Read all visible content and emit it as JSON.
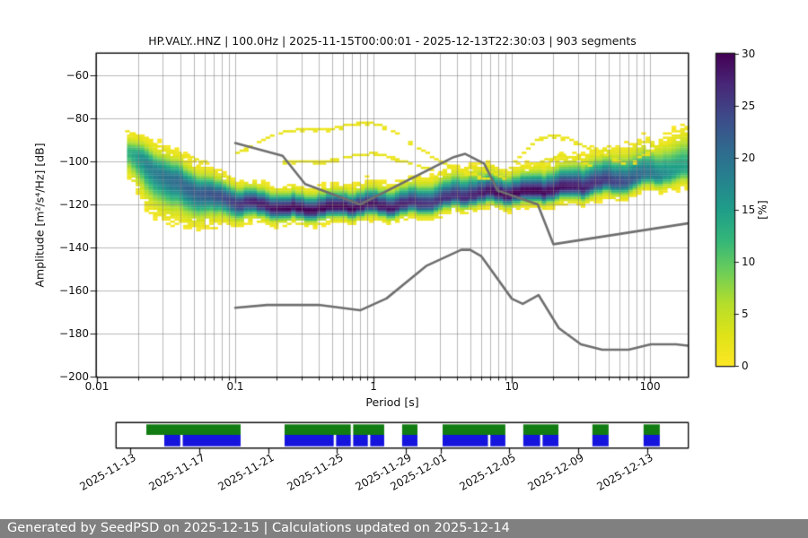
{
  "page": {
    "bg": "#ffffff"
  },
  "footer": {
    "text": "Generated by SeedPSD on 2025-12-15 | Calculations updated on 2025-12-14",
    "bg": "#808080",
    "fg": "#ffffff"
  },
  "chart_data": {
    "type": "heatmap",
    "title": "HP.VALY..HNZ | 100.0Hz | 2025-11-15T00:00:01 - 2025-12-13T22:30:03 | 903 segments",
    "xlabel": "Period [s]",
    "ylabel": "Amplitude [m²/s⁴/Hz] [dB]",
    "x_axis": {
      "scale": "log",
      "min": 0.01,
      "max": 187,
      "major_ticks": [
        {
          "v": 0.01,
          "label": "0.01"
        },
        {
          "v": 0.1,
          "label": "0.1"
        },
        {
          "v": 1,
          "label": "1"
        },
        {
          "v": 10,
          "label": "10"
        },
        {
          "v": 100,
          "label": "100"
        }
      ]
    },
    "y_axis": {
      "min": -200,
      "max": -50,
      "ticks": [
        {
          "v": -60,
          "label": "−60"
        },
        {
          "v": -80,
          "label": "−80"
        },
        {
          "v": -100,
          "label": "−100"
        },
        {
          "v": -120,
          "label": "−120"
        },
        {
          "v": -140,
          "label": "−140"
        },
        {
          "v": -160,
          "label": "−160"
        },
        {
          "v": -180,
          "label": "−180"
        },
        {
          "v": -200,
          "label": "−200"
        }
      ]
    },
    "grid": {
      "on": true,
      "color_rgba": [
        128,
        128,
        128,
        0.55
      ]
    },
    "colorbar": {
      "label": "[%]",
      "min": 0,
      "max": 30,
      "ticks": [
        0,
        5,
        10,
        15,
        20,
        25,
        30
      ],
      "colormap": "viridis_r",
      "viridis_stops": [
        [
          0.0,
          "#440154"
        ],
        [
          0.1,
          "#482878"
        ],
        [
          0.2,
          "#3e4a89"
        ],
        [
          0.3,
          "#31688e"
        ],
        [
          0.4,
          "#26828e"
        ],
        [
          0.5,
          "#1f9e89"
        ],
        [
          0.6,
          "#35b779"
        ],
        [
          0.7,
          "#6ece58"
        ],
        [
          0.8,
          "#b5de2b"
        ],
        [
          0.9,
          "#dfe318"
        ],
        [
          1.0,
          "#fde725"
        ]
      ]
    },
    "noise_models": {
      "color": "#6f6f6f",
      "line_width": 2.6,
      "high_model": [
        [
          0.1,
          -91.5
        ],
        [
          0.22,
          -97.4
        ],
        [
          0.32,
          -110.5
        ],
        [
          0.8,
          -120.0
        ],
        [
          3.8,
          -98.0
        ],
        [
          4.6,
          -96.5
        ],
        [
          6.3,
          -101.0
        ],
        [
          7.9,
          -113.5
        ],
        [
          15.4,
          -120.0
        ],
        [
          20.0,
          -138.5
        ],
        [
          187.0,
          -128.8
        ]
      ],
      "low_model": [
        [
          0.1,
          -168.0
        ],
        [
          0.17,
          -166.7
        ],
        [
          0.4,
          -166.7
        ],
        [
          0.8,
          -169.2
        ],
        [
          1.24,
          -163.7
        ],
        [
          2.4,
          -148.6
        ],
        [
          4.3,
          -141.1
        ],
        [
          5.0,
          -141.1
        ],
        [
          6.0,
          -144.0
        ],
        [
          10.0,
          -163.8
        ],
        [
          12.0,
          -166.2
        ],
        [
          15.6,
          -162.1
        ],
        [
          21.9,
          -177.5
        ],
        [
          31.6,
          -185.0
        ],
        [
          45.0,
          -187.5
        ],
        [
          70.0,
          -187.5
        ],
        [
          101.0,
          -185.0
        ],
        [
          154.0,
          -185.0
        ],
        [
          187.0,
          -185.6
        ]
      ]
    },
    "ppsd_distribution": {
      "comment": "columns of [period_s, mode_dB, sigma_above_dB, sigma_below_dB, peak_percent]",
      "period_min": 0.0165,
      "period_max": 187,
      "columns_per_decade": 32,
      "profile": [
        [
          0.0165,
          -96.5,
          4.0,
          5.5,
          13
        ],
        [
          0.022,
          -101.0,
          5.2,
          9.0,
          18
        ],
        [
          0.032,
          -108.0,
          6.2,
          8.5,
          20
        ],
        [
          0.05,
          -113.5,
          5.5,
          7.0,
          22
        ],
        [
          0.08,
          -118.0,
          4.6,
          5.0,
          24
        ],
        [
          0.13,
          -120.5,
          4.2,
          3.6,
          28
        ],
        [
          0.25,
          -121.8,
          4.2,
          3.0,
          30
        ],
        [
          0.6,
          -121.5,
          4.2,
          2.9,
          30
        ],
        [
          1.2,
          -120.8,
          4.6,
          2.9,
          29
        ],
        [
          2.5,
          -118.8,
          5.2,
          3.0,
          26
        ],
        [
          4.5,
          -116.3,
          5.8,
          3.0,
          27
        ],
        [
          8.0,
          -115.0,
          4.8,
          3.0,
          30
        ],
        [
          15.0,
          -113.6,
          5.2,
          3.0,
          30
        ],
        [
          30.0,
          -112.3,
          6.2,
          3.2,
          28
        ],
        [
          60.0,
          -109.3,
          6.8,
          3.4,
          24
        ],
        [
          100.0,
          -106.0,
          7.0,
          3.2,
          19
        ],
        [
          150.0,
          -104.5,
          8.2,
          3.8,
          15
        ],
        [
          187.0,
          -103.5,
          8.8,
          4.5,
          14
        ]
      ],
      "low_probability_arcs": [
        {
          "pct": 1.4,
          "pts": [
            [
              0.016,
              -86.5
            ],
            [
              0.022,
              -90.0
            ],
            [
              0.032,
              -94.5
            ],
            [
              0.045,
              -98.0
            ],
            [
              0.06,
              -101.5
            ]
          ]
        },
        {
          "pct": 1.3,
          "pts": [
            [
              0.1,
              -95.5
            ],
            [
              0.14,
              -91.0
            ],
            [
              0.2,
              -87.5
            ],
            [
              0.3,
              -85.5
            ],
            [
              0.45,
              -84.5
            ],
            [
              0.65,
              -82.5
            ],
            [
              0.85,
              -82.0
            ],
            [
              1.1,
              -84.0
            ],
            [
              1.5,
              -88.5
            ],
            [
              2.0,
              -93.0
            ],
            [
              2.8,
              -98.5
            ],
            [
              3.8,
              -103.0
            ],
            [
              5.0,
              -106.5
            ],
            [
              6.5,
              -109.0
            ]
          ]
        },
        {
          "pct": 1.5,
          "pts": [
            [
              0.22,
              -100.5
            ],
            [
              0.4,
              -99.5
            ],
            [
              0.7,
              -97.5
            ],
            [
              1.0,
              -97.0
            ],
            [
              1.4,
              -98.5
            ],
            [
              2.0,
              -101.0
            ],
            [
              2.6,
              -104.0
            ]
          ]
        },
        {
          "pct": 1.5,
          "pts": [
            [
              2.5,
              -108.0
            ],
            [
              4.0,
              -104.5
            ],
            [
              5.5,
              -103.0
            ],
            [
              7.0,
              -105.0
            ],
            [
              9.0,
              -108.0
            ]
          ]
        },
        {
          "pct": 1.3,
          "pts": [
            [
              9.5,
              -103.0
            ],
            [
              12.0,
              -96.0
            ],
            [
              15.0,
              -90.5
            ],
            [
              19.0,
              -87.5
            ],
            [
              24.0,
              -88.5
            ],
            [
              30.0,
              -91.0
            ],
            [
              38.0,
              -94.5
            ],
            [
              50.0,
              -98.5
            ],
            [
              62.0,
              -101.5
            ]
          ]
        },
        {
          "pct": 1.6,
          "pts": [
            [
              12.0,
              -104.0
            ],
            [
              16.0,
              -99.5
            ],
            [
              22.0,
              -96.5
            ],
            [
              28.0,
              -98.0
            ],
            [
              36.0,
              -102.0
            ]
          ]
        },
        {
          "pct": 1.4,
          "pts": [
            [
              75.0,
              -99.0
            ],
            [
              95.0,
              -95.0
            ],
            [
              120.0,
              -91.0
            ],
            [
              150.0,
              -88.5
            ]
          ]
        }
      ]
    },
    "timeline": {
      "total_days": 33.13,
      "green_color": "#117c11",
      "blue_color": "#1414dd",
      "ticks": [
        {
          "day": 0.78,
          "label": "2025-11-13"
        },
        {
          "day": 4.78,
          "label": "2025-11-17"
        },
        {
          "day": 8.78,
          "label": "2025-11-21"
        },
        {
          "day": 12.78,
          "label": "2025-11-25"
        },
        {
          "day": 16.78,
          "label": "2025-11-29"
        },
        {
          "day": 18.78,
          "label": "2025-12-01"
        },
        {
          "day": 22.78,
          "label": "2025-12-05"
        },
        {
          "day": 26.78,
          "label": "2025-12-09"
        },
        {
          "day": 30.78,
          "label": "2025-12-13"
        }
      ],
      "green_segments": [
        [
          1.72,
          7.19
        ],
        [
          9.74,
          13.58
        ],
        [
          13.72,
          15.52
        ],
        [
          16.56,
          17.45
        ],
        [
          18.91,
          22.55
        ],
        [
          23.59,
          25.63
        ],
        [
          27.6,
          28.54
        ],
        [
          30.57,
          31.51
        ]
      ],
      "blue_segments": [
        [
          2.76,
          3.69
        ],
        [
          3.83,
          7.19
        ],
        [
          9.74,
          12.59
        ],
        [
          12.73,
          13.58
        ],
        [
          13.72,
          14.57
        ],
        [
          14.71,
          15.52
        ],
        [
          16.56,
          17.45
        ],
        [
          18.91,
          21.54
        ],
        [
          21.68,
          22.55
        ],
        [
          23.59,
          24.57
        ],
        [
          24.71,
          25.63
        ],
        [
          27.6,
          28.54
        ],
        [
          30.57,
          31.51
        ]
      ]
    }
  }
}
